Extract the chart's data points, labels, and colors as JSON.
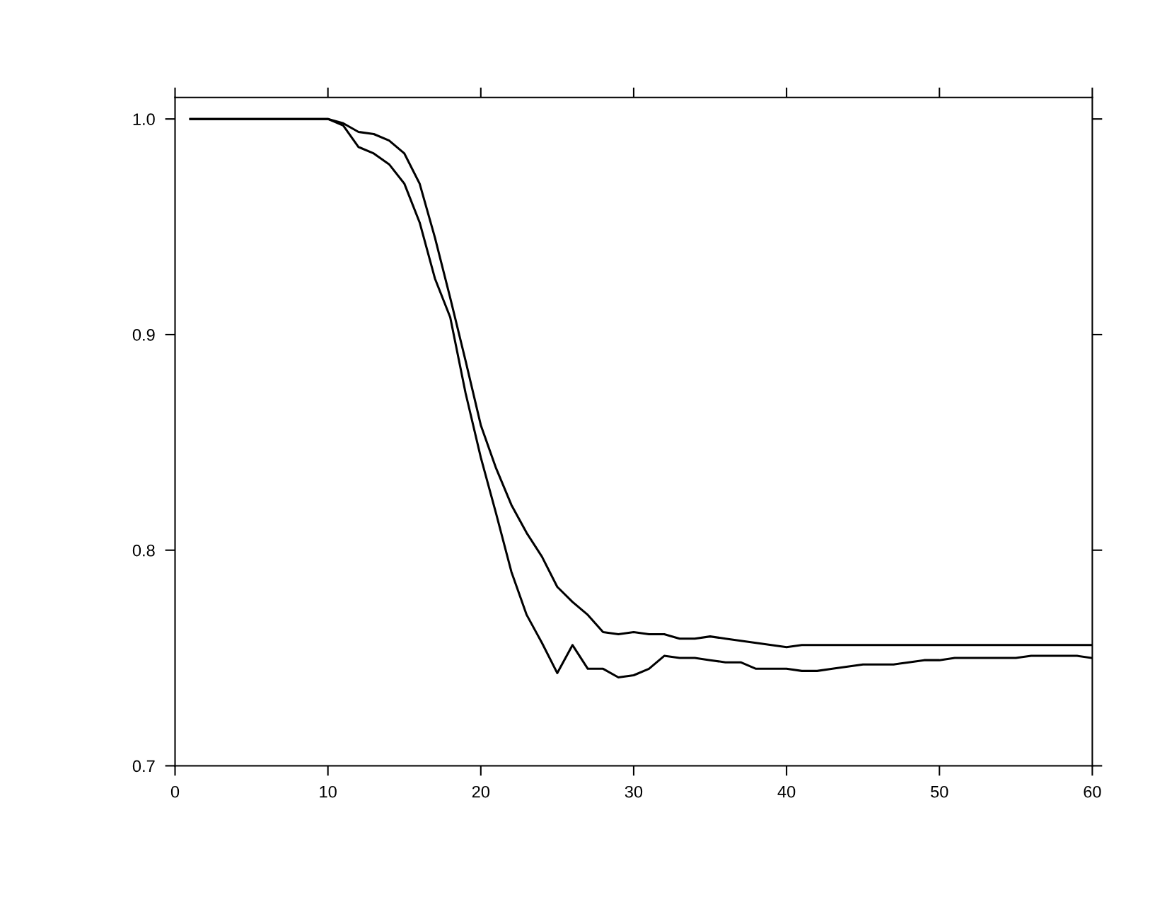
{
  "chart_data": {
    "type": "line",
    "x": [
      1,
      2,
      3,
      4,
      5,
      6,
      7,
      8,
      9,
      10,
      11,
      12,
      13,
      14,
      15,
      16,
      17,
      18,
      19,
      20,
      21,
      22,
      23,
      24,
      25,
      26,
      27,
      28,
      29,
      30,
      31,
      32,
      33,
      34,
      35,
      36,
      37,
      38,
      39,
      40,
      41,
      42,
      43,
      44,
      45,
      46,
      47,
      48,
      49,
      50,
      51,
      52,
      53,
      54,
      55,
      56,
      57,
      58,
      59,
      60
    ],
    "series": [
      {
        "color": "#000000",
        "values": [
          1.0,
          1.0,
          1.0,
          1.0,
          1.0,
          1.0,
          1.0,
          1.0,
          1.0,
          1.0,
          0.998,
          0.994,
          0.993,
          0.99,
          0.984,
          0.97,
          0.945,
          0.917,
          0.888,
          0.858,
          0.838,
          0.821,
          0.808,
          0.797,
          0.783,
          0.776,
          0.77,
          0.762,
          0.761,
          0.762,
          0.761,
          0.761,
          0.759,
          0.759,
          0.76,
          0.759,
          0.758,
          0.757,
          0.756,
          0.755,
          0.756,
          0.756,
          0.756,
          0.756,
          0.756,
          0.756,
          0.756,
          0.756,
          0.756,
          0.756,
          0.756,
          0.756,
          0.756,
          0.756,
          0.756,
          0.756,
          0.756,
          0.756,
          0.756,
          0.756
        ]
      },
      {
        "color": "#000000",
        "values": [
          1.0,
          1.0,
          1.0,
          1.0,
          1.0,
          1.0,
          1.0,
          1.0,
          1.0,
          1.0,
          0.997,
          0.987,
          0.984,
          0.979,
          0.97,
          0.952,
          0.926,
          0.908,
          0.873,
          0.843,
          0.817,
          0.79,
          0.77,
          0.757,
          0.743,
          0.756,
          0.745,
          0.745,
          0.741,
          0.742,
          0.745,
          0.751,
          0.75,
          0.75,
          0.749,
          0.748,
          0.748,
          0.745,
          0.745,
          0.745,
          0.744,
          0.744,
          0.745,
          0.746,
          0.747,
          0.747,
          0.747,
          0.748,
          0.749,
          0.749,
          0.75,
          0.75,
          0.75,
          0.75,
          0.75,
          0.751,
          0.751,
          0.751,
          0.751,
          0.75
        ]
      }
    ],
    "xlim": [
      0,
      60
    ],
    "xticks": [
      0,
      10,
      20,
      30,
      40,
      50,
      60
    ],
    "ylim": [
      0.7,
      1.01
    ],
    "yticks": [
      {
        "value": 0.7,
        "label": "0.7"
      },
      {
        "value": 0.8,
        "label": "0.8"
      },
      {
        "value": 0.9,
        "label": "0.9"
      },
      {
        "value": 1.0,
        "label": "1.0"
      }
    ],
    "grid": false,
    "marker": "none",
    "line_style": "solid"
  }
}
